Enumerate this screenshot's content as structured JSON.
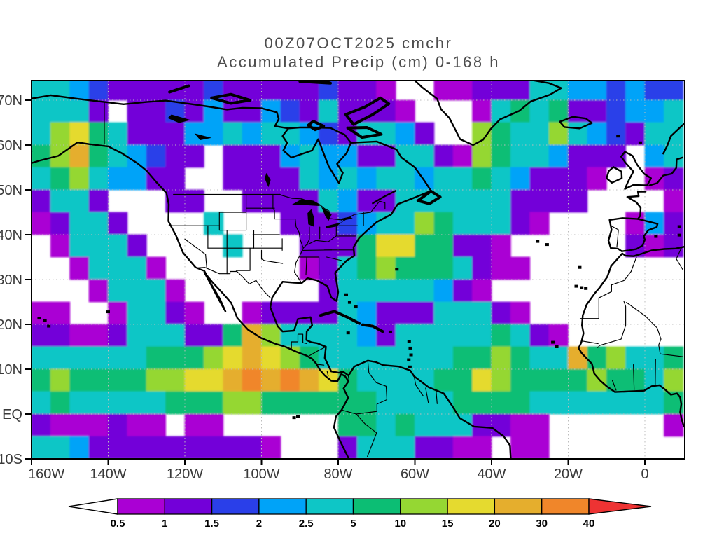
{
  "title": {
    "line1": "00Z07OCT2025 cmchr",
    "line2": "Accumulated Precip (cm) 0-168 h"
  },
  "chart_data": {
    "type": "heatmap",
    "title": "00Z07OCT2025 cmchr",
    "subtitle": "Accumulated Precip (cm) 0-168 h",
    "variable": "Accumulated Precip (cm)",
    "forecast_window_hours": "0-168",
    "init_time": "00Z07OCT2025",
    "model_label": "cmchr",
    "projection": "lat-lon",
    "lon_range_deg": [
      -160,
      10.4
    ],
    "lat_range_deg": [
      -10,
      74.4
    ],
    "grid_style": "dotted",
    "x_axis": {
      "tick_labels": [
        "160W",
        "140W",
        "120W",
        "100W",
        "80W",
        "60W",
        "40W",
        "20W",
        "0"
      ],
      "tick_lons": [
        -160,
        -140,
        -120,
        -100,
        -80,
        -60,
        -40,
        -20,
        0
      ]
    },
    "y_axis": {
      "tick_labels": [
        "70N",
        "60N",
        "50N",
        "40N",
        "30N",
        "20N",
        "10N",
        "EQ",
        "10S"
      ],
      "tick_lats": [
        70,
        60,
        50,
        40,
        30,
        20,
        10,
        0,
        -10
      ]
    },
    "colorbar": {
      "boundary_labels": [
        "0.5",
        "1",
        "1.5",
        "2",
        "2.5",
        "5",
        "10",
        "15",
        "20",
        "30",
        "40"
      ],
      "segment_colors": [
        "#aa00d4",
        "#7300d9",
        "#2a3fe9",
        "#00a3f8",
        "#0ec6c6",
        "#0cbe74",
        "#95d733",
        "#e5da2f",
        "#e5ae2d",
        "#f0862a"
      ],
      "under_color": "#ffffff",
      "over_color": "#ee3333",
      "outline_color": "#000000"
    },
    "level_palette": {
      "1": "#aa00d4",
      "2": "#7300d9",
      "3": "#2a3fe9",
      "4": "#00a3f8",
      "5": "#0ec6c6",
      "6": "#0cbe74",
      "7": "#95d733",
      "8": "#e5da2f",
      "9": "#e5ae2d",
      "A": "#f0862a",
      "B": "#ee3333"
    },
    "field_grid": {
      "note": "Coarse 5-degree digitization of plotted precip field; chars map to level_palette, '.' = below 0.5 cm (white)",
      "cell_deg": 5,
      "origin_corner": "75N,160W",
      "cols_lon_start": -160,
      "rows_lat_start": 75,
      "legend": {
        ".": "<0.5",
        "1": "0.5-1",
        "2": "1-1.5",
        "3": "1.5-2",
        "4": "2-2.5",
        "5": "2.5-5",
        "6": "5-10",
        "7": "10-15",
        "8": "15-20",
        "9": "20-30",
        "A": "30-40",
        "B": ">40"
      },
      "rows": [
        "5543222223222223221..1122255443433",
        "5552.223242243252221...15656223445",
        "578652224454554325542..76557543255",
        "679654322.222454422552176554222.45",
        "56754422..22225454554556542221..12",
        "2552...22..222254225555552222....1",
        "12552....5...22234557655521....142",
        ".15552....5...22268866221......212",
        "..15551.......125676665211........",
        "...15551.......255555421..........",
        "11..15521..122225422255521........",
        "2211255522697555542555556521......",
        "5555556667898765555555667655967556",
        "67666677889A9A98655556687666676657",
        "5655555666776666665555666655555556",
        "2111211.11......66565552211......1",
        "5542222222221...25552211.11......."
      ]
    },
    "style_colors": {
      "coastline": "#000000",
      "frame": "#000000",
      "grid_dots": "#bdbdbd",
      "title_text": "#4d4d4d",
      "axis_text": "#3a3a3a"
    }
  }
}
